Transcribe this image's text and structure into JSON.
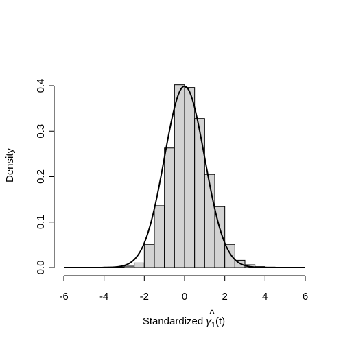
{
  "chart_data": {
    "type": "bar",
    "title": "",
    "xlabel_prefix": "Standardized ",
    "xlabel_symbol": "γ",
    "xlabel_accent": "^",
    "xlabel_subscript": "1",
    "xlabel_suffix": "(t)",
    "ylabel": "Density",
    "xlim": [
      -6,
      6
    ],
    "ylim": [
      0,
      0.4
    ],
    "x_ticks": [
      -6,
      -4,
      -2,
      0,
      2,
      4,
      6
    ],
    "y_ticks": [
      0.0,
      0.1,
      0.2,
      0.3,
      0.4
    ],
    "y_tick_labels": [
      "0.0",
      "0.1",
      "0.2",
      "0.3",
      "0.4"
    ],
    "grid": false,
    "bin_width": 0.5,
    "bins": [
      {
        "start": -4.0,
        "density": 0.001
      },
      {
        "start": -3.5,
        "density": 0.001
      },
      {
        "start": -3.0,
        "density": 0.003
      },
      {
        "start": -2.5,
        "density": 0.01
      },
      {
        "start": -2.0,
        "density": 0.051
      },
      {
        "start": -1.5,
        "density": 0.136
      },
      {
        "start": -1.0,
        "density": 0.263
      },
      {
        "start": -0.5,
        "density": 0.402
      },
      {
        "start": 0.0,
        "density": 0.396
      },
      {
        "start": 0.5,
        "density": 0.328
      },
      {
        "start": 1.0,
        "density": 0.205
      },
      {
        "start": 1.5,
        "density": 0.134
      },
      {
        "start": 2.0,
        "density": 0.051
      },
      {
        "start": 2.5,
        "density": 0.016
      },
      {
        "start": 3.0,
        "density": 0.006
      },
      {
        "start": 3.5,
        "density": 0.002
      },
      {
        "start": 4.0,
        "density": 0.001
      }
    ],
    "curve": {
      "type": "normal_density",
      "mean": 0,
      "sd": 1,
      "x_range": [
        -6,
        6
      ]
    },
    "colors": {
      "bar_fill": "#d3d3d3",
      "bar_stroke": "#000000",
      "curve": "#000000"
    }
  }
}
